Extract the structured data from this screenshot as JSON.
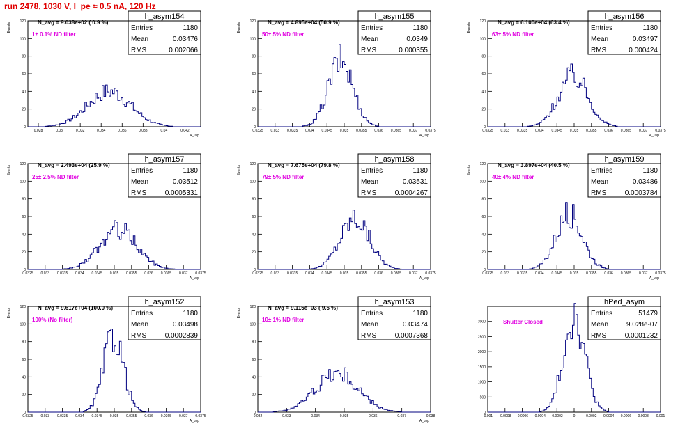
{
  "run_title": "run 2478,  1030 V, I_pe ≈ 0.5 nA, 120 Hz",
  "colors": {
    "histogram": "#00007f",
    "title_text": "#e00000",
    "filter_text": "#e000e0",
    "frame": "#000000"
  },
  "chart_data": [
    {
      "type": "histogram",
      "name": "h_asym154",
      "navg": "N_avg = 9.038e+02 ( 0.9 %)",
      "filter": "1± 0.1% ND filter",
      "stats": {
        "Entries": "1180",
        "Mean": "0.03476",
        "RMS": "0.002066"
      },
      "ylabel": "Events",
      "xlabel": "A_uvp",
      "xlim": [
        0.027,
        0.0435
      ],
      "ylim": [
        0,
        120
      ],
      "xticks": [
        0.028,
        0.03,
        0.032,
        0.034,
        0.036,
        0.038,
        0.04,
        0.042
      ],
      "xtick_labels": [
        "0.028",
        "0.03",
        "0.032",
        "0.034",
        "0.036",
        "0.038",
        "0.04",
        "0.042"
      ],
      "yticks": [
        0,
        20,
        40,
        60,
        80,
        100,
        120
      ],
      "mean": 0.03476,
      "rms": 0.002066,
      "peak": 40
    },
    {
      "type": "histogram",
      "name": "h_asym155",
      "navg": "N_avg = 4.895e+04 (50.9 %)",
      "filter": "50± 5% ND filter",
      "stats": {
        "Entries": "1180",
        "Mean": "0.0349",
        "RMS": "0.000355"
      },
      "ylabel": "Events",
      "xlabel": "A_uvp",
      "xlim": [
        0.0325,
        0.0375
      ],
      "ylim": [
        0,
        120
      ],
      "xticks": [
        0.0325,
        0.033,
        0.0335,
        0.034,
        0.0345,
        0.035,
        0.0355,
        0.036,
        0.0365,
        0.037,
        0.0375
      ],
      "xtick_labels": [
        "0.0325",
        "0.033",
        "0.0335",
        "0.034",
        "0.0345",
        "0.035",
        "0.0355",
        "0.036",
        "0.0365",
        "0.037",
        "0.0375"
      ],
      "yticks": [
        0,
        20,
        40,
        60,
        80,
        100,
        120
      ],
      "mean": 0.0349,
      "rms": 0.000355,
      "peak": 75
    },
    {
      "type": "histogram",
      "name": "h_asym156",
      "navg": "N_avg = 6.100e+04 (63.4 %)",
      "filter": "63± 5% ND filter",
      "stats": {
        "Entries": "1180",
        "Mean": "0.03497",
        "RMS": "0.000424"
      },
      "ylabel": "Events",
      "xlabel": "A_uvp",
      "xlim": [
        0.0325,
        0.0375
      ],
      "ylim": [
        0,
        120
      ],
      "xticks": [
        0.0325,
        0.033,
        0.0335,
        0.034,
        0.0345,
        0.035,
        0.0355,
        0.036,
        0.0365,
        0.037,
        0.0375
      ],
      "xtick_labels": [
        "0.0325",
        "0.033",
        "0.0335",
        "0.034",
        "0.0345",
        "0.035",
        "0.0355",
        "0.036",
        "0.0365",
        "0.037",
        "0.0375"
      ],
      "yticks": [
        0,
        20,
        40,
        60,
        80,
        100,
        120
      ],
      "mean": 0.03497,
      "rms": 0.000424,
      "peak": 58
    },
    {
      "type": "histogram",
      "name": "h_asym157",
      "navg": "N_avg = 2.493e+04 (25.9 %)",
      "filter": "25± 2.5% ND filter",
      "stats": {
        "Entries": "1180",
        "Mean": "0.03512",
        "RMS": "0.0005331"
      },
      "ylabel": "Events",
      "xlabel": "A_uvp",
      "xlim": [
        0.0325,
        0.0375
      ],
      "ylim": [
        0,
        120
      ],
      "xticks": [
        0.0325,
        0.033,
        0.0335,
        0.034,
        0.0345,
        0.035,
        0.0355,
        0.036,
        0.0365,
        0.037,
        0.0375
      ],
      "xtick_labels": [
        "0.0325",
        "0.033",
        "0.0335",
        "0.034",
        "0.0345",
        "0.035",
        "0.0355",
        "0.036",
        "0.0365",
        "0.037",
        "0.0375"
      ],
      "yticks": [
        0,
        20,
        40,
        60,
        80,
        100,
        120
      ],
      "mean": 0.03512,
      "rms": 0.0005331,
      "peak": 45
    },
    {
      "type": "histogram",
      "name": "h_asym158",
      "navg": "N_avg = 7.675e+04 (79.8 %)",
      "filter": "79± 5% ND filter",
      "stats": {
        "Entries": "1180",
        "Mean": "0.03531",
        "RMS": "0.0004267"
      },
      "ylabel": "Events",
      "xlabel": "A_uvp",
      "xlim": [
        0.0325,
        0.0375
      ],
      "ylim": [
        0,
        120
      ],
      "xticks": [
        0.0325,
        0.033,
        0.0335,
        0.034,
        0.0345,
        0.035,
        0.0355,
        0.036,
        0.0365,
        0.037,
        0.0375
      ],
      "xtick_labels": [
        "0.0325",
        "0.033",
        "0.0335",
        "0.034",
        "0.0345",
        "0.035",
        "0.0355",
        "0.036",
        "0.0365",
        "0.037",
        "0.0375"
      ],
      "yticks": [
        0,
        20,
        40,
        60,
        80,
        100,
        120
      ],
      "mean": 0.03531,
      "rms": 0.0004267,
      "peak": 58
    },
    {
      "type": "histogram",
      "name": "h_asym159",
      "navg": "N_avg = 3.897e+04 (40.5 %)",
      "filter": "40± 4% ND filter",
      "stats": {
        "Entries": "1180",
        "Mean": "0.03486",
        "RMS": "0.0003784"
      },
      "ylabel": "Events",
      "xlabel": "A_uvp",
      "xlim": [
        0.0325,
        0.0375
      ],
      "ylim": [
        0,
        120
      ],
      "xticks": [
        0.0325,
        0.033,
        0.0335,
        0.034,
        0.0345,
        0.035,
        0.0355,
        0.036,
        0.0365,
        0.037,
        0.0375
      ],
      "xtick_labels": [
        "0.0325",
        "0.033",
        "0.0335",
        "0.034",
        "0.0345",
        "0.035",
        "0.0355",
        "0.036",
        "0.0365",
        "0.037",
        "0.0375"
      ],
      "yticks": [
        0,
        20,
        40,
        60,
        80,
        100,
        120
      ],
      "mean": 0.03486,
      "rms": 0.0003784,
      "peak": 63
    },
    {
      "type": "histogram",
      "name": "h_asym152",
      "navg": "N_avg = 9.617e+04 (100.0 %)",
      "filter": "100% (No filter)",
      "stats": {
        "Entries": "1180",
        "Mean": "0.03498",
        "RMS": "0.0002839"
      },
      "ylabel": "Events",
      "xlabel": "A_uvp",
      "xlim": [
        0.0325,
        0.0375
      ],
      "ylim": [
        0,
        120
      ],
      "xticks": [
        0.0325,
        0.033,
        0.0335,
        0.034,
        0.0345,
        0.035,
        0.0355,
        0.036,
        0.0365,
        0.037,
        0.0375
      ],
      "xtick_labels": [
        "0.0325",
        "0.033",
        "0.0335",
        "0.034",
        "0.0345",
        "0.035",
        "0.0355",
        "0.036",
        "0.0365",
        "0.037",
        "0.0375"
      ],
      "yticks": [
        0,
        20,
        40,
        60,
        80,
        100,
        120
      ],
      "mean": 0.03498,
      "rms": 0.0002839,
      "peak": 88
    },
    {
      "type": "histogram",
      "name": "h_asym153",
      "navg": "N_avg = 9.115e+03 ( 9.5 %)",
      "filter": "10± 1% ND filter",
      "stats": {
        "Entries": "1180",
        "Mean": "0.03474",
        "RMS": "0.0007368"
      },
      "ylabel": "Events",
      "xlabel": "A_uvp",
      "xlim": [
        0.032,
        0.038
      ],
      "ylim": [
        0,
        120
      ],
      "xticks": [
        0.032,
        0.033,
        0.034,
        0.035,
        0.036,
        0.037,
        0.038
      ],
      "xtick_labels": [
        "0.032",
        "0.033",
        "0.034",
        "0.035",
        "0.036",
        "0.037",
        "0.038"
      ],
      "yticks": [
        0,
        20,
        40,
        60,
        80,
        100,
        120
      ],
      "mean": 0.03474,
      "rms": 0.0007368,
      "peak": 44
    },
    {
      "type": "histogram",
      "name": "hPed_asym",
      "navg": "",
      "filter": "Shutter Closed",
      "stats": {
        "Entries": "51479",
        "Mean": "9.028e-07",
        "RMS": "0.0001232"
      },
      "ylabel": "",
      "xlabel": "",
      "xlim": [
        -0.001,
        0.001
      ],
      "ylim": [
        0,
        3500
      ],
      "xticks": [
        -0.001,
        -0.0008,
        -0.0006,
        -0.0004,
        -0.0002,
        0,
        0.0002,
        0.0004,
        0.0006,
        0.0008,
        0.001
      ],
      "xtick_labels": [
        "-0.001",
        "-0.0008",
        "-0.0006",
        "-0.0004",
        "-0.0002",
        "0",
        "0.0002",
        "0.0004",
        "0.0006",
        "0.0008",
        "0.001"
      ],
      "yticks": [
        0,
        500,
        1000,
        1500,
        2000,
        2500,
        3000
      ],
      "mean": 9e-07,
      "rms": 0.0001232,
      "peak": 3250
    }
  ]
}
